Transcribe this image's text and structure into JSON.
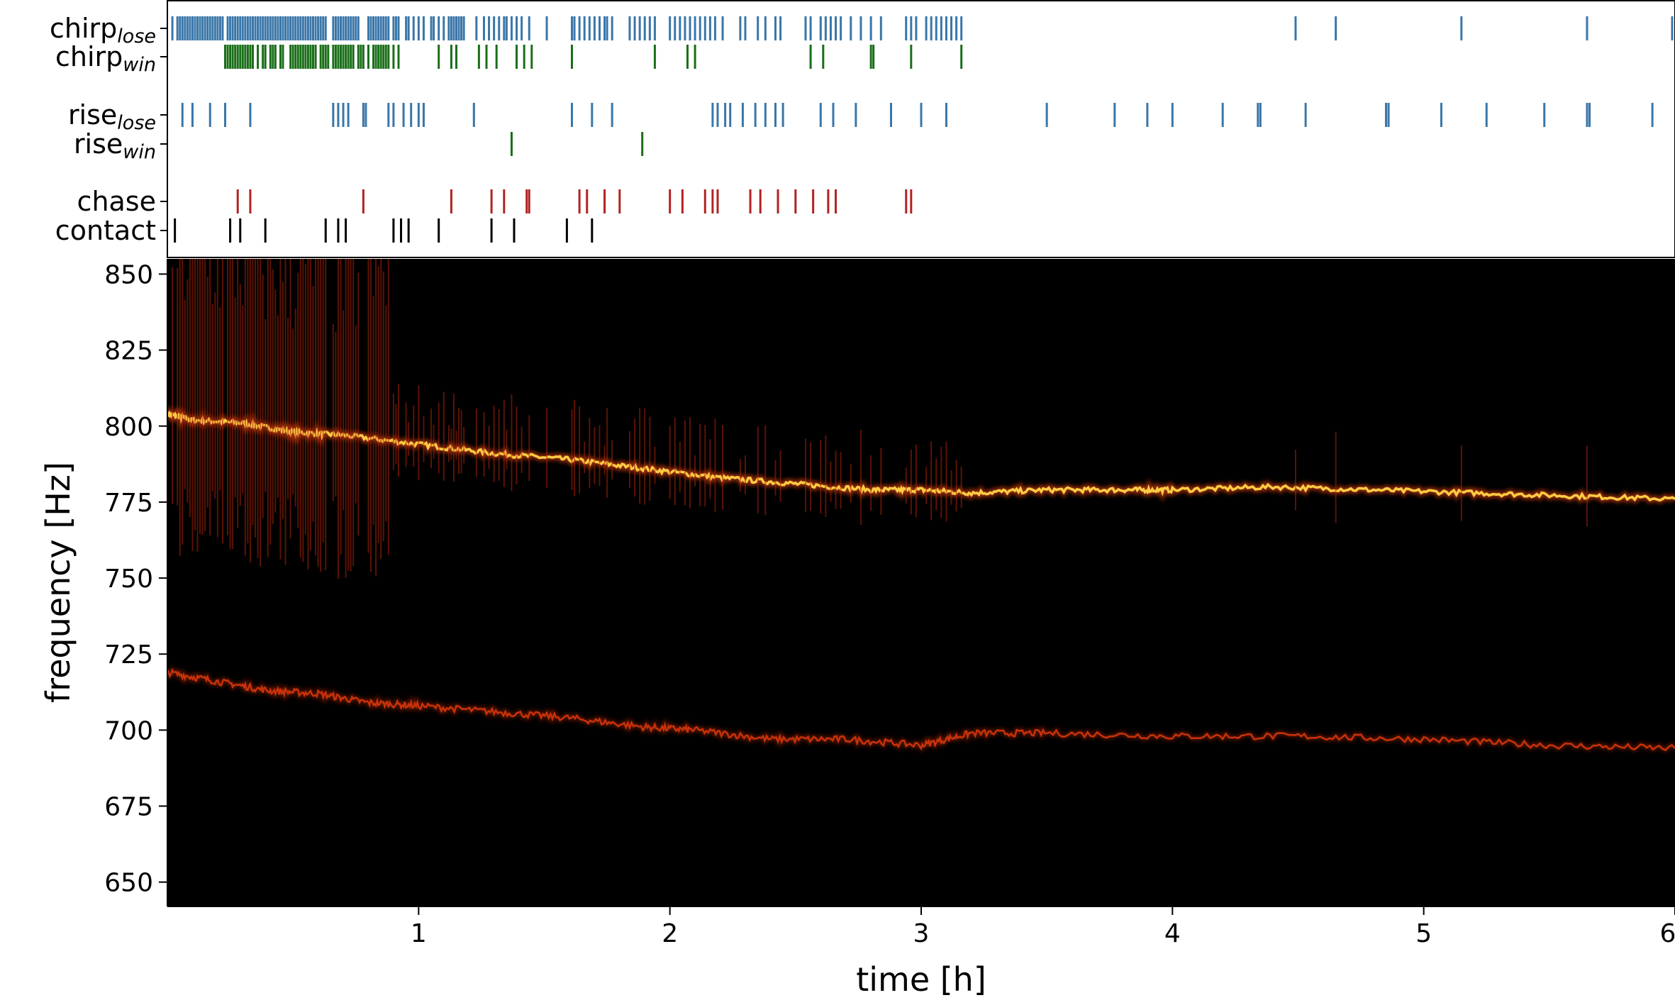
{
  "chart_data": [
    {
      "type": "event-raster",
      "rows": [
        {
          "name": "chirp",
          "subscript": "lose",
          "color": "#3a76a8",
          "events": [
            0.02,
            0.04,
            0.05,
            0.06,
            0.07,
            0.08,
            0.09,
            0.1,
            0.11,
            0.12,
            0.13,
            0.14,
            0.15,
            0.16,
            0.17,
            0.18,
            0.19,
            0.2,
            0.21,
            0.22,
            0.24,
            0.25,
            0.26,
            0.27,
            0.28,
            0.29,
            0.3,
            0.31,
            0.32,
            0.33,
            0.34,
            0.35,
            0.36,
            0.37,
            0.38,
            0.39,
            0.4,
            0.41,
            0.42,
            0.43,
            0.44,
            0.45,
            0.46,
            0.47,
            0.48,
            0.49,
            0.5,
            0.51,
            0.52,
            0.53,
            0.54,
            0.55,
            0.56,
            0.57,
            0.58,
            0.59,
            0.6,
            0.61,
            0.62,
            0.63,
            0.66,
            0.67,
            0.68,
            0.69,
            0.7,
            0.71,
            0.72,
            0.73,
            0.74,
            0.75,
            0.76,
            0.8,
            0.81,
            0.82,
            0.83,
            0.84,
            0.85,
            0.86,
            0.87,
            0.88,
            0.9,
            0.91,
            0.92,
            0.95,
            0.96,
            0.98,
            1.0,
            1.02,
            1.05,
            1.06,
            1.08,
            1.1,
            1.12,
            1.13,
            1.14,
            1.15,
            1.16,
            1.17,
            1.18,
            1.23,
            1.26,
            1.28,
            1.3,
            1.32,
            1.34,
            1.35,
            1.37,
            1.39,
            1.41,
            1.44,
            1.51,
            1.61,
            1.62,
            1.64,
            1.66,
            1.68,
            1.7,
            1.72,
            1.74,
            1.75,
            1.77,
            1.84,
            1.86,
            1.88,
            1.9,
            1.92,
            1.94,
            2.0,
            2.02,
            2.04,
            2.06,
            2.08,
            2.1,
            2.12,
            2.14,
            2.16,
            2.18,
            2.21,
            2.28,
            2.3,
            2.35,
            2.38,
            2.42,
            2.44,
            2.54,
            2.56,
            2.6,
            2.62,
            2.64,
            2.66,
            2.68,
            2.72,
            2.76,
            2.8,
            2.84,
            2.94,
            2.96,
            2.98,
            3.02,
            3.04,
            3.06,
            3.08,
            3.1,
            3.12,
            3.14,
            3.16,
            4.49,
            4.65,
            5.15,
            5.65,
            6.0
          ]
        },
        {
          "name": "chirp",
          "subscript": "win",
          "color": "#1a6e18",
          "events": [
            0.23,
            0.24,
            0.25,
            0.26,
            0.27,
            0.28,
            0.29,
            0.3,
            0.31,
            0.32,
            0.33,
            0.34,
            0.36,
            0.38,
            0.39,
            0.41,
            0.42,
            0.43,
            0.45,
            0.46,
            0.49,
            0.5,
            0.51,
            0.52,
            0.53,
            0.54,
            0.55,
            0.56,
            0.57,
            0.58,
            0.59,
            0.61,
            0.62,
            0.63,
            0.64,
            0.66,
            0.67,
            0.68,
            0.69,
            0.7,
            0.71,
            0.72,
            0.73,
            0.74,
            0.76,
            0.77,
            0.78,
            0.8,
            0.82,
            0.83,
            0.84,
            0.85,
            0.86,
            0.87,
            0.88,
            0.9,
            0.92,
            1.08,
            1.13,
            1.15,
            1.24,
            1.27,
            1.31,
            1.39,
            1.42,
            1.45,
            1.61,
            1.94,
            2.07,
            2.1,
            2.56,
            2.61,
            2.8,
            2.81,
            2.96,
            3.16
          ]
        },
        {
          "name": "rise",
          "subscript": "lose",
          "color": "#3a76a8",
          "events": [
            0.06,
            0.1,
            0.17,
            0.23,
            0.33,
            0.66,
            0.68,
            0.7,
            0.72,
            0.78,
            0.79,
            0.88,
            0.9,
            0.94,
            0.97,
            1.0,
            1.02,
            1.22,
            1.61,
            1.69,
            1.77,
            2.17,
            2.19,
            2.22,
            2.24,
            2.29,
            2.34,
            2.38,
            2.42,
            2.45,
            2.6,
            2.65,
            2.74,
            2.88,
            3.0,
            3.1,
            3.5,
            3.77,
            3.9,
            4.0,
            4.2,
            4.34,
            4.35,
            4.53,
            4.85,
            4.86,
            5.07,
            5.25,
            5.48,
            5.65,
            5.66,
            5.91
          ]
        },
        {
          "name": "rise",
          "subscript": "win",
          "color": "#1a6e18",
          "events": [
            1.37,
            1.89
          ]
        },
        {
          "name": "chase",
          "subscript": "",
          "color": "#b22222",
          "events": [
            0.28,
            0.33,
            0.78,
            1.13,
            1.29,
            1.34,
            1.43,
            1.44,
            1.64,
            1.67,
            1.74,
            1.8,
            2.0,
            2.05,
            2.14,
            2.17,
            2.19,
            2.32,
            2.36,
            2.43,
            2.5,
            2.57,
            2.63,
            2.66,
            2.94,
            2.96
          ]
        },
        {
          "name": "contact",
          "subscript": "",
          "color": "#000000",
          "events": [
            0.03,
            0.25,
            0.29,
            0.39,
            0.63,
            0.68,
            0.71,
            0.9,
            0.93,
            0.96,
            1.08,
            1.29,
            1.38,
            1.59,
            1.69
          ]
        }
      ]
    },
    {
      "type": "heatmap",
      "xlabel": "time [h]",
      "ylabel": "frequency [Hz]",
      "xlim": [
        0,
        6
      ],
      "ylim": [
        642,
        855
      ],
      "xticks": [
        1,
        2,
        3,
        4,
        5,
        6
      ],
      "yticks": [
        650,
        675,
        700,
        725,
        750,
        775,
        800,
        825,
        850
      ],
      "background": "#000000",
      "series": [
        {
          "x": [
            0.0,
            0.1,
            0.3,
            0.5,
            0.7,
            1.0,
            1.3,
            1.6,
            1.9,
            2.2,
            2.5,
            2.8,
            3.0,
            3.2,
            3.5,
            3.8,
            4.0,
            4.4,
            4.8,
            5.2,
            5.6,
            6.0
          ],
          "y": [
            804,
            802,
            801,
            798,
            797,
            794,
            791,
            789,
            786,
            783,
            781,
            779,
            779,
            778,
            779,
            779,
            779,
            780,
            779,
            778,
            777,
            776
          ],
          "color": "#ffcc44"
        },
        {
          "x": [
            0.0,
            0.2,
            0.4,
            0.6,
            0.8,
            1.0,
            1.3,
            1.6,
            1.9,
            2.1,
            2.4,
            2.7,
            3.0,
            3.2,
            3.5,
            4.0,
            4.5,
            5.0,
            5.5,
            6.0
          ],
          "y": [
            719,
            716,
            713,
            712,
            709,
            708,
            706,
            704,
            701,
            700,
            697,
            697,
            695,
            699,
            699,
            698,
            698,
            697,
            695,
            694
          ],
          "color": "#c8320a"
        }
      ]
    }
  ]
}
